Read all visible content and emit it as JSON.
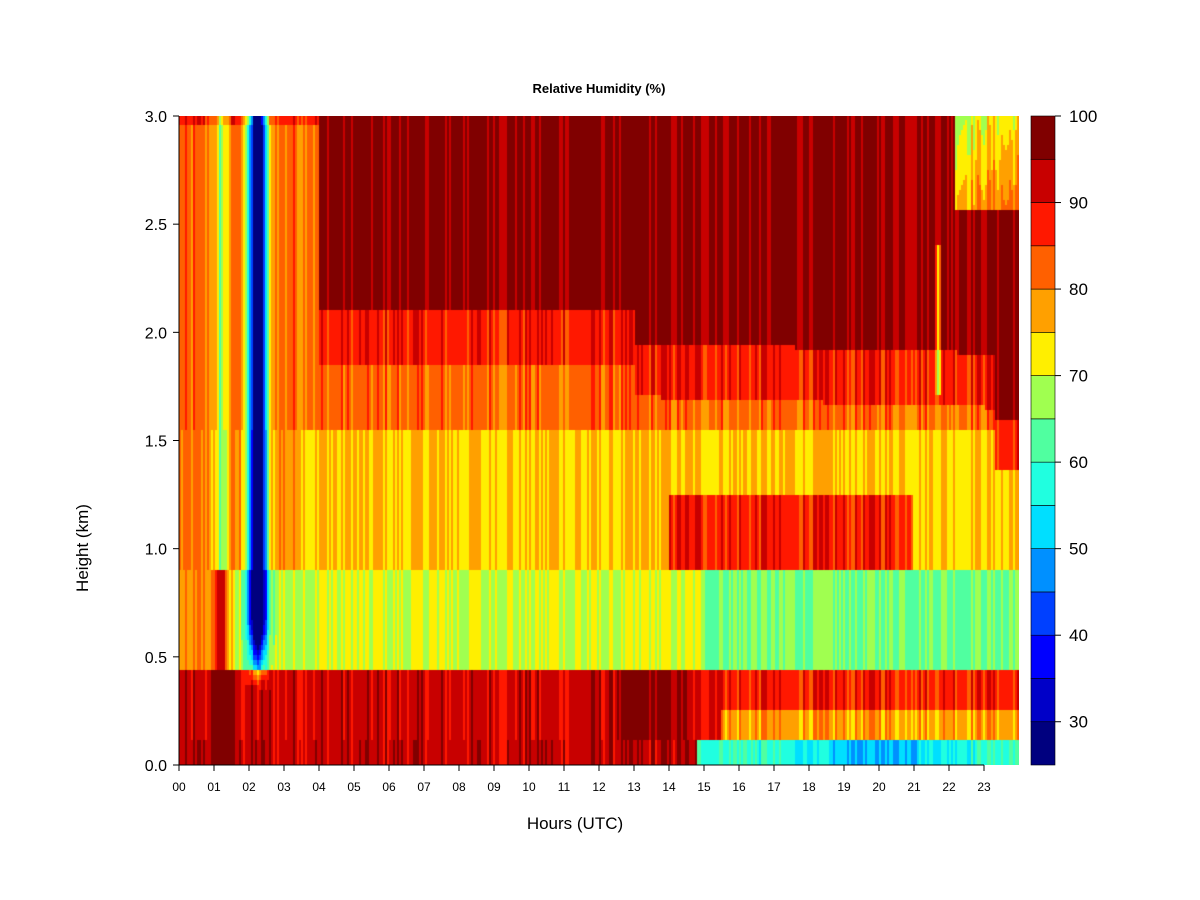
{
  "chart_data": {
    "type": "heatmap",
    "title": "Relative Humidity (%)",
    "xlabel": "Hours (UTC)",
    "ylabel": "Height (km)",
    "xlim": [
      0,
      24
    ],
    "ylim": [
      0,
      3.0
    ],
    "x_ticks": [
      "00",
      "01",
      "02",
      "03",
      "04",
      "05",
      "06",
      "07",
      "08",
      "09",
      "10",
      "11",
      "12",
      "13",
      "14",
      "15",
      "16",
      "17",
      "18",
      "19",
      "20",
      "21",
      "22",
      "23"
    ],
    "y_ticks": [
      "0.0",
      "0.5",
      "1.0",
      "1.5",
      "2.0",
      "2.5",
      "3.0"
    ],
    "colorbar": {
      "range": [
        25,
        100
      ],
      "ticks": [
        "30",
        "40",
        "50",
        "60",
        "70",
        "80",
        "90",
        "100"
      ],
      "levels": [
        {
          "min": 25,
          "max": 30,
          "color": "#00007f"
        },
        {
          "min": 30,
          "max": 35,
          "color": "#0000c8"
        },
        {
          "min": 35,
          "max": 40,
          "color": "#0000ff"
        },
        {
          "min": 40,
          "max": 45,
          "color": "#0040ff"
        },
        {
          "min": 45,
          "max": 50,
          "color": "#0090ff"
        },
        {
          "min": 50,
          "max": 55,
          "color": "#00dfff"
        },
        {
          "min": 55,
          "max": 60,
          "color": "#20ffe0"
        },
        {
          "min": 60,
          "max": 65,
          "color": "#50ffa0"
        },
        {
          "min": 65,
          "max": 70,
          "color": "#a0ff50"
        },
        {
          "min": 70,
          "max": 75,
          "color": "#ffef00"
        },
        {
          "min": 75,
          "max": 80,
          "color": "#ffa000"
        },
        {
          "min": 80,
          "max": 85,
          "color": "#ff6000"
        },
        {
          "min": 85,
          "max": 90,
          "color": "#ff1800"
        },
        {
          "min": 90,
          "max": 95,
          "color": "#c80000"
        },
        {
          "min": 95,
          "max": 100,
          "color": "#800000"
        }
      ]
    },
    "field_description_hours": [
      0,
      1,
      2,
      3,
      4,
      6,
      8,
      10,
      12,
      14,
      15,
      16,
      18,
      20,
      21.7,
      22,
      23,
      24
    ],
    "field_description_heights_km": [
      0,
      0.25,
      0.5,
      1.0,
      1.5,
      2.0,
      2.5,
      3.0
    ]
  }
}
